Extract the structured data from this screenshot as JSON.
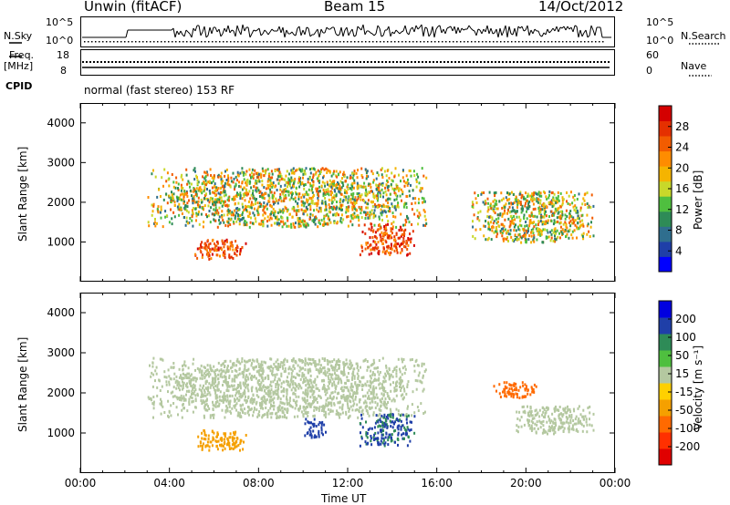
{
  "header": {
    "station": "Unwin (fitACF)",
    "beam": "Beam 15",
    "date": "14/Oct/2012"
  },
  "noise_panel": {
    "left_label": "N.Sky",
    "right_label": "N.Search",
    "ticks_left": [
      "10^5",
      "10^0"
    ],
    "ticks_right": [
      "10^5",
      "10^0"
    ]
  },
  "freq_panel": {
    "left_label_1": "Freq.",
    "left_label_2": "[MHz]",
    "right_label": "Nave",
    "ticks_left": [
      "18",
      "8"
    ],
    "ticks_right": [
      "60",
      "0"
    ]
  },
  "cpid_panel": {
    "label": "CPID",
    "text": "normal (fast stereo) 153 RF"
  },
  "chart_data": [
    {
      "type": "heatmap",
      "title": "",
      "ylabel": "Slant Range [km]",
      "xlabel": "",
      "xlim": [
        "00:00",
        "24:00"
      ],
      "ylim": [
        0,
        4500
      ],
      "yticks": [
        "1000",
        "2000",
        "3000",
        "4000"
      ],
      "colorbar_label": "Power [dB]",
      "colorbar_ticks": [
        "4",
        "8",
        "12",
        "16",
        "20",
        "24",
        "28"
      ],
      "colorbar_colors": [
        "#0000ff",
        "#1f3fa8",
        "#2f6e8e",
        "#2e8b57",
        "#4fbf3f",
        "#c8d82a",
        "#f5b400",
        "#ff8c00",
        "#f25c00",
        "#e53000",
        "#d40000"
      ],
      "echo_regions": [
        {
          "t_start": "03:00",
          "t_end": "15:30",
          "range_km": [
            1400,
            2900
          ],
          "power_db": [
            8,
            24
          ]
        },
        {
          "t_start": "05:00",
          "t_end": "07:30",
          "range_km": [
            600,
            1100
          ],
          "power_db": [
            20,
            28
          ]
        },
        {
          "t_start": "12:30",
          "t_end": "15:00",
          "range_km": [
            700,
            1500
          ],
          "power_db": [
            20,
            28
          ]
        },
        {
          "t_start": "17:30",
          "t_end": "23:00",
          "range_km": [
            1000,
            2300
          ],
          "power_db": [
            8,
            24
          ]
        }
      ]
    },
    {
      "type": "heatmap",
      "title": "",
      "ylabel": "Slant Range [km]",
      "xlabel": "Time UT",
      "xlim": [
        "00:00",
        "24:00"
      ],
      "ylim": [
        0,
        4500
      ],
      "xticks": [
        "00:00",
        "04:00",
        "08:00",
        "12:00",
        "16:00",
        "20:00",
        "00:00"
      ],
      "yticks": [
        "1000",
        "2000",
        "3000",
        "4000"
      ],
      "colorbar_label": "Velocity [m s⁻¹]",
      "colorbar_ticks": [
        "200",
        "100",
        "50",
        "15",
        "-15",
        "-50",
        "-100",
        "-200"
      ],
      "colorbar_colors": [
        "#0000e0",
        "#1f3fa8",
        "#2e8b57",
        "#4fbf3f",
        "#b4c8a0",
        "#ffd000",
        "#f5a000",
        "#ff6a00",
        "#ff3000",
        "#e00000"
      ],
      "echo_regions": [
        {
          "t_start": "03:00",
          "t_end": "15:30",
          "range_km": [
            1400,
            2900
          ],
          "velocity": [
            -15,
            15
          ]
        },
        {
          "t_start": "05:00",
          "t_end": "07:30",
          "range_km": [
            600,
            1100
          ],
          "velocity": [
            -100,
            -50
          ]
        },
        {
          "t_start": "10:00",
          "t_end": "11:00",
          "range_km": [
            900,
            1400
          ],
          "velocity": [
            100,
            200
          ]
        },
        {
          "t_start": "12:30",
          "t_end": "15:00",
          "range_km": [
            700,
            1500
          ],
          "velocity": [
            50,
            200
          ]
        },
        {
          "t_start": "18:30",
          "t_end": "20:30",
          "range_km": [
            1900,
            2300
          ],
          "velocity": [
            -200,
            -100
          ]
        },
        {
          "t_start": "19:30",
          "t_end": "23:00",
          "range_km": [
            1000,
            1700
          ],
          "velocity": [
            -15,
            15
          ]
        }
      ]
    }
  ]
}
